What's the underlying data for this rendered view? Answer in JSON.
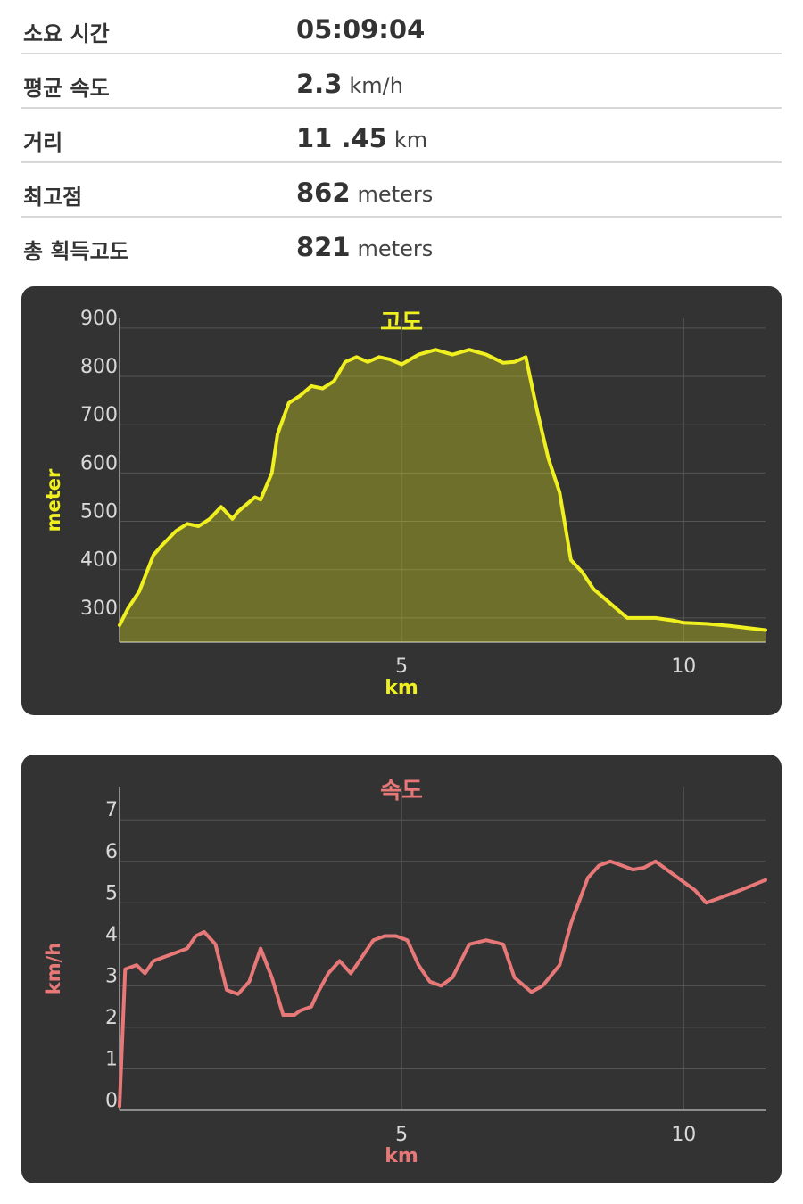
{
  "stats": [
    {
      "label": "소요 시간",
      "value": "05:09:04",
      "unit": ""
    },
    {
      "label": "평균 속도",
      "value": "2.3",
      "unit": "km/h"
    },
    {
      "label": "거리",
      "value": "11 .45",
      "unit": "km"
    },
    {
      "label": "최고점",
      "value": "862",
      "unit": "meters"
    },
    {
      "label": "총 획득고도",
      "value": "821",
      "unit": "meters"
    }
  ],
  "colors": {
    "elevation": "#f0f020",
    "speed": "#e87878",
    "panel": "#333333",
    "grid": "#555555"
  },
  "chart_data": [
    {
      "type": "area",
      "title": "고도",
      "xlabel": "km",
      "ylabel": "meter",
      "xlim": [
        0,
        11.45
      ],
      "ylim": [
        250,
        920
      ],
      "x_ticks": [
        5,
        10
      ],
      "y_ticks": [
        300,
        400,
        500,
        600,
        700,
        800,
        900
      ],
      "grid": true,
      "series": [
        {
          "x": [
            0,
            0.15,
            0.35,
            0.6,
            0.75,
            1.0,
            1.2,
            1.4,
            1.6,
            1.8,
            2.0,
            2.1,
            2.2,
            2.4,
            2.5,
            2.7,
            2.8,
            3.0,
            3.2,
            3.4,
            3.6,
            3.8,
            4.0,
            4.2,
            4.4,
            4.6,
            4.8,
            5.0,
            5.3,
            5.6,
            5.9,
            6.2,
            6.5,
            6.8,
            7.0,
            7.2,
            7.4,
            7.6,
            7.8,
            8.0,
            8.2,
            8.4,
            8.6,
            8.8,
            9.0,
            9.2,
            9.5,
            9.8,
            10.0,
            10.4,
            10.8,
            11.45
          ],
          "y": [
            285,
            320,
            355,
            430,
            450,
            480,
            495,
            490,
            505,
            530,
            505,
            520,
            530,
            550,
            545,
            600,
            680,
            745,
            760,
            780,
            775,
            790,
            830,
            840,
            830,
            840,
            835,
            825,
            845,
            855,
            845,
            855,
            845,
            828,
            830,
            840,
            730,
            630,
            560,
            420,
            395,
            360,
            340,
            320,
            300,
            300,
            300,
            295,
            290,
            288,
            284,
            275
          ]
        }
      ]
    },
    {
      "type": "line",
      "title": "속도",
      "xlabel": "km",
      "ylabel": "km/h",
      "xlim": [
        0,
        11.45
      ],
      "ylim": [
        0,
        7.8
      ],
      "x_ticks": [
        5,
        10
      ],
      "y_ticks": [
        0,
        1,
        2,
        3,
        4,
        5,
        6,
        7
      ],
      "grid": true,
      "series": [
        {
          "x": [
            0,
            0.1,
            0.3,
            0.45,
            0.6,
            1.2,
            1.35,
            1.5,
            1.7,
            1.9,
            2.1,
            2.3,
            2.5,
            2.7,
            2.9,
            3.1,
            3.2,
            3.4,
            3.5,
            3.7,
            3.9,
            4.1,
            4.2,
            4.5,
            4.7,
            4.9,
            5.1,
            5.3,
            5.5,
            5.7,
            5.9,
            6.2,
            6.5,
            6.8,
            7.0,
            7.3,
            7.5,
            7.8,
            8.0,
            8.3,
            8.5,
            8.7,
            8.9,
            9.1,
            9.3,
            9.5,
            9.8,
            10.0,
            10.2,
            10.4,
            10.6,
            11.0,
            11.45
          ],
          "y": [
            0.1,
            3.4,
            3.5,
            3.3,
            3.6,
            3.9,
            4.2,
            4.3,
            4.0,
            2.9,
            2.8,
            3.1,
            3.9,
            3.2,
            2.3,
            2.3,
            2.4,
            2.5,
            2.8,
            3.3,
            3.6,
            3.3,
            3.5,
            4.1,
            4.2,
            4.2,
            4.1,
            3.5,
            3.1,
            3.0,
            3.2,
            4.0,
            4.1,
            4.0,
            3.2,
            2.85,
            3.0,
            3.5,
            4.5,
            5.6,
            5.9,
            6.0,
            5.9,
            5.8,
            5.85,
            6.0,
            5.7,
            5.5,
            5.3,
            5.0,
            5.1,
            5.3,
            5.55
          ]
        }
      ]
    }
  ]
}
